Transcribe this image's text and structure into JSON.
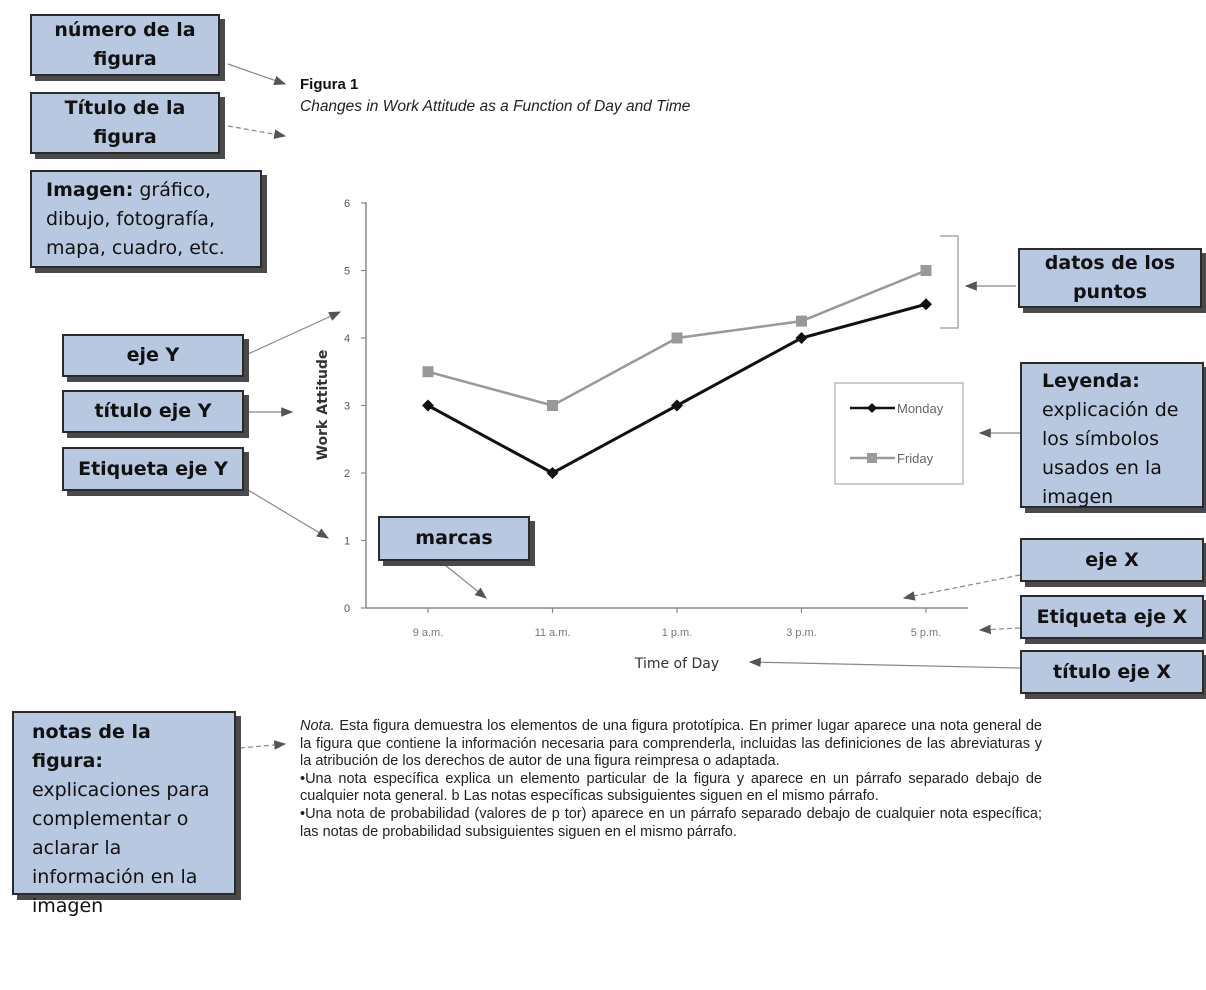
{
  "figure": {
    "number": "Figura 1",
    "title": "Changes in Work Attitude as a Function of Day and Time"
  },
  "callouts": {
    "numero": "número de la figura",
    "titulo": "Título de la figura",
    "imagen_bold": "Imagen:",
    "imagen_text": "gráfico, dibujo, fotografía, mapa, cuadro, etc.",
    "eje_y": "eje Y",
    "titulo_eje_y": "título eje Y",
    "etiqueta_eje_y": "Etiqueta eje Y",
    "marcas": "marcas",
    "datos": "datos de los puntos",
    "leyenda_bold": "Leyenda:",
    "leyenda_text": "explicación de los símbolos usados en la imagen",
    "eje_x": "eje X",
    "etiqueta_eje_x": "Etiqueta eje X",
    "titulo_eje_x": "título eje X",
    "notas_bold": "notas de la figura:",
    "notas_text": "explicaciones para complementar o aclarar la información en la imagen"
  },
  "note": {
    "label": "Nota.",
    "general": "Esta figura demuestra los elementos de una figura prototípica. En primer lugar aparece una nota general de la figura que contiene la información necesaria para comprenderla, incluidas las definiciones de las abreviaturas y la atribución de los derechos de autor de una figura reimpresa o adaptada.",
    "specific": "•Una nota específica explica un elemento particular de la figura y aparece en un párrafo separado debajo de cualquier nota general. b Las notas específicas subsiguientes siguen en el mismo párrafo.",
    "probability": "•Una nota de probabilidad (valores de p tor) aparece en un párrafo separado debajo de cualquier nota específica; las notas de probabilidad subsiguientes siguen en el mismo párrafo."
  },
  "colors": {
    "callout_fill": "#b8c8e0",
    "callout_border": "#2b2b2b",
    "monday": "#111111",
    "friday": "#999999"
  },
  "chart_data": {
    "type": "line",
    "title": "",
    "xlabel": "Time of Day",
    "ylabel": "Work Attitude",
    "categories": [
      "9 a.m.",
      "11 a.m.",
      "1 p.m.",
      "3 p.m.",
      "5 p.m."
    ],
    "ylim": [
      0,
      6
    ],
    "yticks": [
      "0",
      "1",
      "2",
      "3",
      "4",
      "5",
      "6"
    ],
    "grid": false,
    "legend_position": "right",
    "series": [
      {
        "name": "Monday",
        "values": [
          3,
          2,
          3,
          4,
          4.5
        ],
        "color": "#111111",
        "marker": "diamond"
      },
      {
        "name": "Friday",
        "values": [
          3.5,
          3,
          4,
          4.25,
          5
        ],
        "color": "#999999",
        "marker": "square"
      }
    ]
  }
}
